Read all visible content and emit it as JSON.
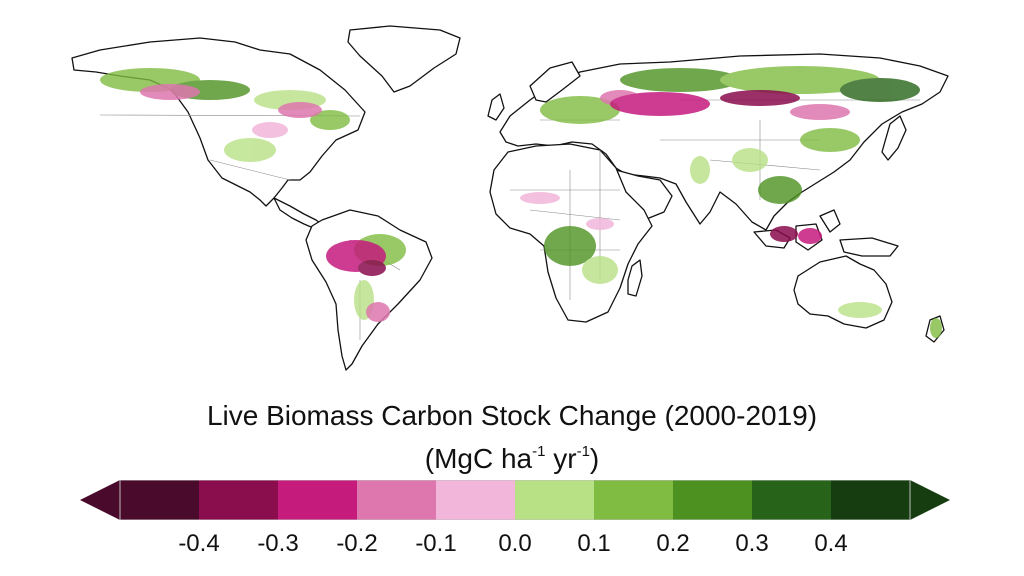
{
  "legend": {
    "title": "Live Biomass Carbon Stock Change (2000-2019)",
    "units_prefix": "(MgC ha",
    "units_exp1": "-1",
    "units_mid": " yr",
    "units_exp2": "-1",
    "units_suffix": ")",
    "ticks": [
      "-0.4",
      "-0.3",
      "-0.2",
      "-0.1",
      "0.0",
      "0.1",
      "0.2",
      "0.3",
      "0.4"
    ],
    "bins": [
      {
        "color": "#4a0a2c"
      },
      {
        "color": "#8a0d4e"
      },
      {
        "color": "#c51b7d"
      },
      {
        "color": "#de77ae"
      },
      {
        "color": "#f1b6da"
      },
      {
        "color": "#b8e186"
      },
      {
        "color": "#7fbc41"
      },
      {
        "color": "#4d9221"
      },
      {
        "color": "#276419"
      },
      {
        "color": "#163d0f"
      }
    ],
    "under_color": "#4a0a2c",
    "over_color": "#163d0f"
  },
  "map": {
    "land_fill": "#ffffff",
    "outline_color": "#111111",
    "border_color": "#888888",
    "loss_color": "#c51b7d",
    "gain_color": "#4d9221"
  }
}
